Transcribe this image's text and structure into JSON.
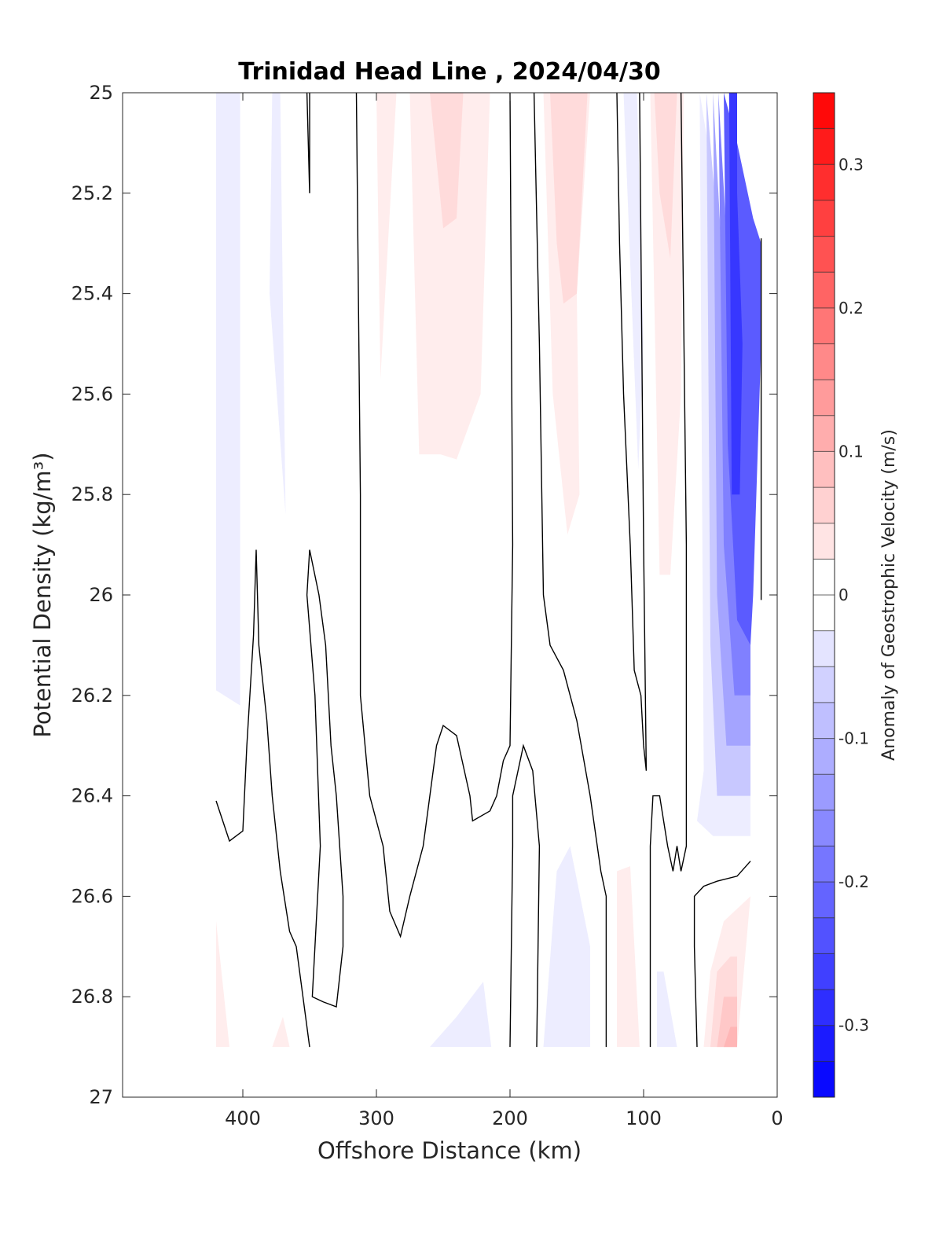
{
  "chart_data": {
    "type": "heatmap",
    "title": "Trinidad Head Line , 2024/04/30",
    "xlabel": "Offshore Distance (km)",
    "ylabel": "Potential Density (kg/m³)",
    "x_reversed": true,
    "y_reversed": true,
    "xlim": [
      490,
      0
    ],
    "ylim": [
      25,
      27
    ],
    "xticks": [
      400,
      300,
      200,
      100,
      0
    ],
    "xtick_labels": [
      "400",
      "300",
      "200",
      "100",
      "0"
    ],
    "yticks": [
      25,
      25.2,
      25.4,
      25.6,
      25.8,
      26,
      26.2,
      26.4,
      26.6,
      26.8,
      27
    ],
    "ytick_labels": [
      "25",
      "25.2",
      "25.4",
      "25.6",
      "25.8",
      "26",
      "26.2",
      "26.4",
      "26.6",
      "26.8",
      "27"
    ],
    "grid": false,
    "colorbar": {
      "label": "Anomaly of Geostrophic Velocity (m/s)",
      "range": [
        -0.35,
        0.35
      ],
      "levels_step": 0.025,
      "ticks": [
        0.3,
        0.2,
        0.1,
        0,
        -0.1,
        -0.2,
        -0.3
      ],
      "tick_labels": [
        "0.3",
        "0.2",
        "0.1",
        "0",
        "-0.1",
        "-0.2",
        "-0.3"
      ],
      "colormap": "blue-white-red",
      "color_negative": "#0000ff",
      "color_zero": "#ffffff",
      "color_positive": "#ff0000"
    },
    "filled_regions": [
      {
        "value": -0.025,
        "points": [
          [
            420,
            25
          ],
          [
            402,
            25
          ],
          [
            402,
            26.22
          ],
          [
            420,
            26.19
          ]
        ]
      },
      {
        "value": -0.025,
        "points": [
          [
            378,
            25
          ],
          [
            372,
            25
          ],
          [
            368,
            25.84
          ],
          [
            380,
            25.4
          ]
        ]
      },
      {
        "value": 0.025,
        "points": [
          [
            300,
            25
          ],
          [
            285,
            25
          ],
          [
            297,
            25.57
          ]
        ]
      },
      {
        "value": 0.025,
        "points": [
          [
            275,
            25
          ],
          [
            215,
            25
          ],
          [
            222,
            25.6
          ],
          [
            240,
            25.73
          ],
          [
            252,
            25.72
          ],
          [
            268,
            25.72
          ]
        ]
      },
      {
        "value": 0.05,
        "points": [
          [
            260,
            25
          ],
          [
            235,
            25
          ],
          [
            240,
            25.25
          ],
          [
            250,
            25.27
          ]
        ]
      },
      {
        "value": 0.025,
        "points": [
          [
            175,
            25
          ],
          [
            140,
            25
          ],
          [
            150,
            25.4
          ],
          [
            148,
            25.8
          ],
          [
            157,
            25.88
          ],
          [
            168,
            25.6
          ]
        ]
      },
      {
        "value": 0.05,
        "points": [
          [
            170,
            25
          ],
          [
            142,
            25
          ],
          [
            150,
            25.4
          ],
          [
            160,
            25.42
          ],
          [
            165,
            25.3
          ]
        ]
      },
      {
        "value": -0.025,
        "points": [
          [
            115,
            25
          ],
          [
            105,
            25
          ],
          [
            100,
            25.5
          ],
          [
            104,
            25.75
          ]
        ]
      },
      {
        "value": 0.025,
        "points": [
          [
            95,
            25
          ],
          [
            70,
            25
          ],
          [
            72,
            25.6
          ],
          [
            80,
            25.96
          ],
          [
            88,
            25.96
          ]
        ]
      },
      {
        "value": 0.05,
        "points": [
          [
            92,
            25
          ],
          [
            75,
            25
          ],
          [
            80,
            25.33
          ],
          [
            88,
            25.2
          ]
        ]
      },
      {
        "value": -0.025,
        "points": [
          [
            58,
            25
          ],
          [
            55,
            26.35
          ],
          [
            60,
            26.45
          ],
          [
            48,
            26.48
          ],
          [
            20,
            26.48
          ],
          [
            20,
            25.8
          ],
          [
            25,
            25.55
          ]
        ]
      },
      {
        "value": -0.075,
        "points": [
          [
            53,
            25
          ],
          [
            50,
            26.1
          ],
          [
            45,
            26.4
          ],
          [
            20,
            26.4
          ],
          [
            20,
            26.1
          ]
        ]
      },
      {
        "value": -0.125,
        "points": [
          [
            48,
            25
          ],
          [
            45,
            26.0
          ],
          [
            38,
            26.3
          ],
          [
            20,
            26.3
          ],
          [
            20,
            26.05
          ],
          [
            30,
            25.9
          ]
        ]
      },
      {
        "value": -0.175,
        "points": [
          [
            44,
            25
          ],
          [
            40,
            25.9
          ],
          [
            32,
            26.2
          ],
          [
            20,
            26.2
          ],
          [
            20,
            26.05
          ],
          [
            25,
            25.9
          ]
        ]
      },
      {
        "value": -0.225,
        "points": [
          [
            40,
            25
          ],
          [
            37,
            25.7
          ],
          [
            30,
            26.05
          ],
          [
            20,
            26.1
          ],
          [
            18,
            26.0
          ],
          [
            12,
            25.5
          ],
          [
            12,
            25.3
          ],
          [
            18,
            25.25
          ],
          [
            30,
            25.1
          ]
        ]
      },
      {
        "value": -0.275,
        "points": [
          [
            36,
            25
          ],
          [
            34,
            25.8
          ],
          [
            28,
            25.8
          ],
          [
            26,
            25.5
          ],
          [
            30,
            25.2
          ],
          [
            30,
            25
          ]
        ]
      },
      {
        "value": 0.025,
        "points": [
          [
            420,
            26.65
          ],
          [
            410,
            26.9
          ],
          [
            420,
            26.9
          ]
        ]
      },
      {
        "value": 0.025,
        "points": [
          [
            378,
            26.9
          ],
          [
            370,
            26.84
          ],
          [
            365,
            26.9
          ]
        ]
      },
      {
        "value": -0.025,
        "points": [
          [
            260,
            26.9
          ],
          [
            240,
            26.84
          ],
          [
            220,
            26.77
          ],
          [
            214,
            26.9
          ]
        ]
      },
      {
        "value": -0.025,
        "points": [
          [
            175,
            26.9
          ],
          [
            165,
            26.55
          ],
          [
            155,
            26.5
          ],
          [
            140,
            26.7
          ],
          [
            140,
            26.9
          ]
        ]
      },
      {
        "value": 0.025,
        "points": [
          [
            120,
            26.9
          ],
          [
            120,
            26.55
          ],
          [
            110,
            26.54
          ],
          [
            103,
            26.9
          ]
        ]
      },
      {
        "value": -0.025,
        "points": [
          [
            90,
            26.9
          ],
          [
            90,
            26.75
          ],
          [
            85,
            26.75
          ],
          [
            75,
            26.9
          ]
        ]
      },
      {
        "value": 0.025,
        "points": [
          [
            55,
            26.9
          ],
          [
            50,
            26.75
          ],
          [
            40,
            26.65
          ],
          [
            20,
            26.6
          ],
          [
            30,
            26.9
          ]
        ]
      },
      {
        "value": 0.05,
        "points": [
          [
            50,
            26.9
          ],
          [
            45,
            26.75
          ],
          [
            35,
            26.72
          ],
          [
            30,
            26.72
          ],
          [
            30,
            26.9
          ]
        ]
      },
      {
        "value": 0.075,
        "points": [
          [
            45,
            26.9
          ],
          [
            40,
            26.8
          ],
          [
            30,
            26.8
          ],
          [
            30,
            26.9
          ]
        ]
      },
      {
        "value": 0.1,
        "points": [
          [
            40,
            26.9
          ],
          [
            35,
            26.86
          ],
          [
            30,
            26.86
          ],
          [
            30,
            26.9
          ]
        ]
      }
    ],
    "zero_contours": [
      [
        [
          420,
          26.41
        ],
        [
          410,
          26.49
        ],
        [
          400,
          26.47
        ],
        [
          397,
          26.3
        ],
        [
          392,
          26.08
        ],
        [
          390,
          25.91
        ],
        [
          388,
          26.1
        ],
        [
          382,
          26.25
        ],
        [
          378,
          26.4
        ],
        [
          372,
          26.55
        ],
        [
          365,
          26.67
        ],
        [
          360,
          26.7
        ],
        [
          355,
          26.8
        ],
        [
          350,
          26.9
        ]
      ],
      [
        [
          350,
          25
        ],
        [
          350,
          25.2
        ],
        [
          352,
          25.0
        ]
      ],
      [
        [
          350,
          25.91
        ],
        [
          352,
          26.0
        ],
        [
          346,
          26.2
        ],
        [
          342,
          26.5
        ],
        [
          348,
          26.8
        ],
        [
          340,
          26.81
        ],
        [
          330,
          26.82
        ],
        [
          325,
          26.7
        ],
        [
          325,
          26.6
        ],
        [
          330,
          26.4
        ],
        [
          334,
          26.3
        ],
        [
          338,
          26.1
        ],
        [
          343,
          26.0
        ],
        [
          350,
          25.91
        ]
      ],
      [
        [
          315,
          25
        ],
        [
          312,
          25.8
        ],
        [
          312,
          26.2
        ],
        [
          305,
          26.4
        ],
        [
          295,
          26.5
        ],
        [
          290,
          26.63
        ],
        [
          282,
          26.68
        ],
        [
          275,
          26.6
        ],
        [
          265,
          26.5
        ],
        [
          255,
          26.3
        ],
        [
          250,
          26.26
        ],
        [
          240,
          26.28
        ],
        [
          230,
          26.4
        ],
        [
          228,
          26.45
        ],
        [
          215,
          26.43
        ],
        [
          210,
          26.4
        ],
        [
          205,
          26.33
        ],
        [
          200,
          26.3
        ],
        [
          198,
          25.9
        ],
        [
          200,
          25
        ]
      ],
      [
        [
          200,
          26.9
        ],
        [
          198,
          26.5
        ],
        [
          198,
          26.4
        ],
        [
          190,
          26.3
        ],
        [
          183,
          26.35
        ],
        [
          178,
          26.5
        ],
        [
          180,
          26.9
        ]
      ],
      [
        [
          182,
          25
        ],
        [
          178,
          25.5
        ],
        [
          175,
          26.0
        ],
        [
          170,
          26.1
        ],
        [
          160,
          26.15
        ],
        [
          150,
          26.25
        ],
        [
          140,
          26.4
        ],
        [
          132,
          26.55
        ],
        [
          128,
          26.6
        ],
        [
          128,
          26.9
        ]
      ],
      [
        [
          120,
          25
        ],
        [
          118,
          25.3
        ],
        [
          115,
          25.6
        ],
        [
          110,
          25.9
        ],
        [
          107,
          26.15
        ],
        [
          102,
          26.2
        ],
        [
          100,
          26.3
        ],
        [
          98,
          26.35
        ],
        [
          100,
          25.9
        ],
        [
          103,
          25
        ]
      ],
      [
        [
          95,
          26.9
        ],
        [
          95,
          26.5
        ],
        [
          93,
          26.4
        ],
        [
          88,
          26.4
        ],
        [
          82,
          26.5
        ],
        [
          78,
          26.55
        ],
        [
          75,
          26.5
        ],
        [
          72,
          26.55
        ],
        [
          68,
          26.5
        ],
        [
          68,
          25.9
        ],
        [
          72,
          25
        ]
      ],
      [
        [
          60,
          26.9
        ],
        [
          62,
          26.7
        ],
        [
          62,
          26.6
        ],
        [
          55,
          26.58
        ],
        [
          45,
          26.57
        ],
        [
          30,
          26.56
        ],
        [
          20,
          26.53
        ]
      ],
      [
        [
          12,
          25.29
        ],
        [
          12,
          26.01
        ]
      ]
    ]
  }
}
